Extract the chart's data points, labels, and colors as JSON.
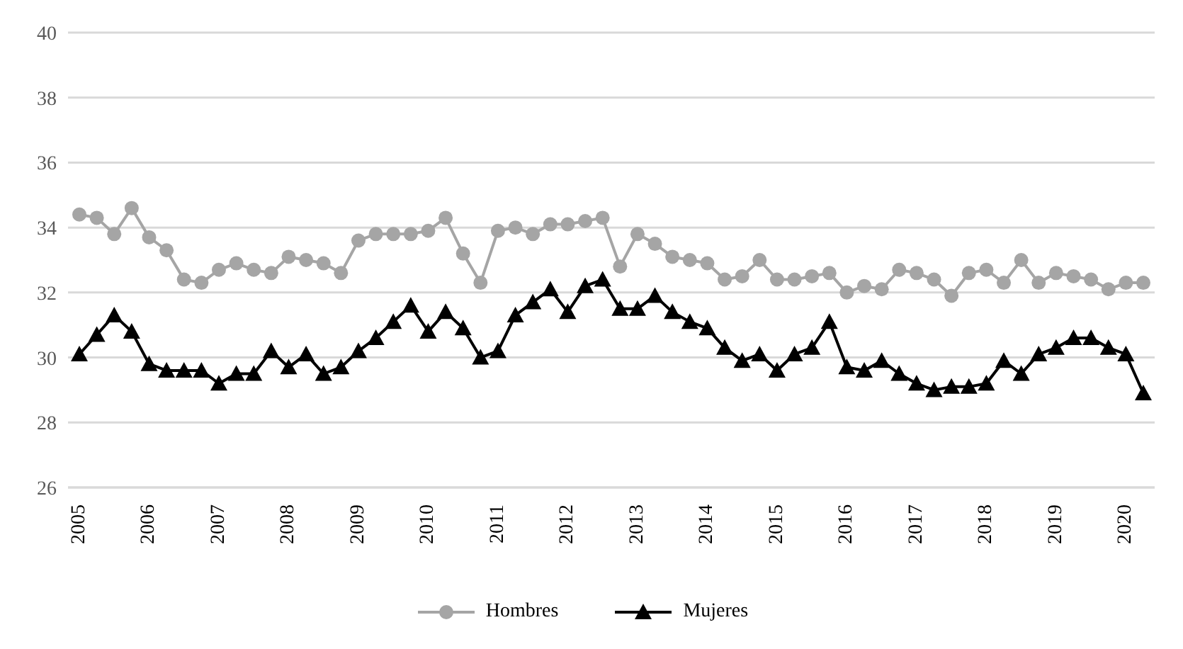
{
  "chart_data": {
    "type": "line",
    "categories": [
      "2005",
      null,
      null,
      null,
      "2006",
      null,
      null,
      null,
      "2007",
      null,
      null,
      null,
      "2008",
      null,
      null,
      null,
      "2009",
      null,
      null,
      null,
      "2010",
      null,
      null,
      null,
      "2011",
      null,
      null,
      null,
      "2012",
      null,
      null,
      null,
      "2013",
      null,
      null,
      null,
      "2014",
      null,
      null,
      null,
      "2015",
      null,
      null,
      null,
      "2016",
      null,
      null,
      null,
      "2017",
      null,
      null,
      null,
      "2018",
      null,
      null,
      null,
      "2019",
      null,
      null,
      null,
      "2020",
      null
    ],
    "series": [
      {
        "name": "Hombres",
        "color": "#a5a5a5",
        "marker": "circle",
        "values": [
          34.4,
          34.3,
          33.8,
          34.6,
          33.7,
          33.3,
          32.4,
          32.3,
          32.7,
          32.9,
          32.7,
          32.6,
          33.1,
          33.0,
          32.9,
          32.6,
          33.6,
          33.8,
          33.8,
          33.8,
          33.9,
          34.3,
          33.2,
          32.3,
          33.9,
          34.0,
          33.8,
          34.1,
          34.1,
          34.2,
          34.3,
          32.8,
          33.8,
          33.5,
          33.1,
          33.0,
          32.9,
          32.4,
          32.5,
          33.0,
          32.4,
          32.4,
          32.5,
          32.6,
          32.0,
          32.2,
          32.1,
          32.7,
          32.6,
          32.4,
          31.9,
          32.6,
          32.7,
          32.3,
          33.0,
          32.3,
          32.6,
          32.5,
          32.4,
          32.1,
          32.3,
          32.3
        ]
      },
      {
        "name": "Mujeres",
        "color": "#000000",
        "marker": "triangle",
        "values": [
          30.1,
          30.7,
          31.3,
          30.8,
          29.8,
          29.6,
          29.6,
          29.6,
          29.2,
          29.5,
          29.5,
          30.2,
          29.7,
          30.1,
          29.5,
          29.7,
          30.2,
          30.6,
          31.1,
          31.6,
          30.8,
          31.4,
          30.9,
          30.0,
          30.2,
          31.3,
          31.7,
          32.1,
          31.4,
          32.2,
          32.4,
          31.5,
          31.5,
          31.9,
          31.4,
          31.1,
          30.9,
          30.3,
          29.9,
          30.1,
          29.6,
          30.1,
          30.3,
          31.1,
          29.7,
          29.6,
          29.9,
          29.5,
          29.2,
          29.0,
          29.1,
          29.1,
          29.2,
          29.9,
          29.5,
          30.1,
          30.3,
          30.6,
          30.6,
          30.3,
          30.1,
          28.9
        ]
      }
    ],
    "ylim": [
      26,
      40
    ],
    "yticks": [
      26,
      28,
      30,
      32,
      34,
      36,
      38,
      40
    ],
    "grid": "y",
    "legend": "bottom"
  }
}
